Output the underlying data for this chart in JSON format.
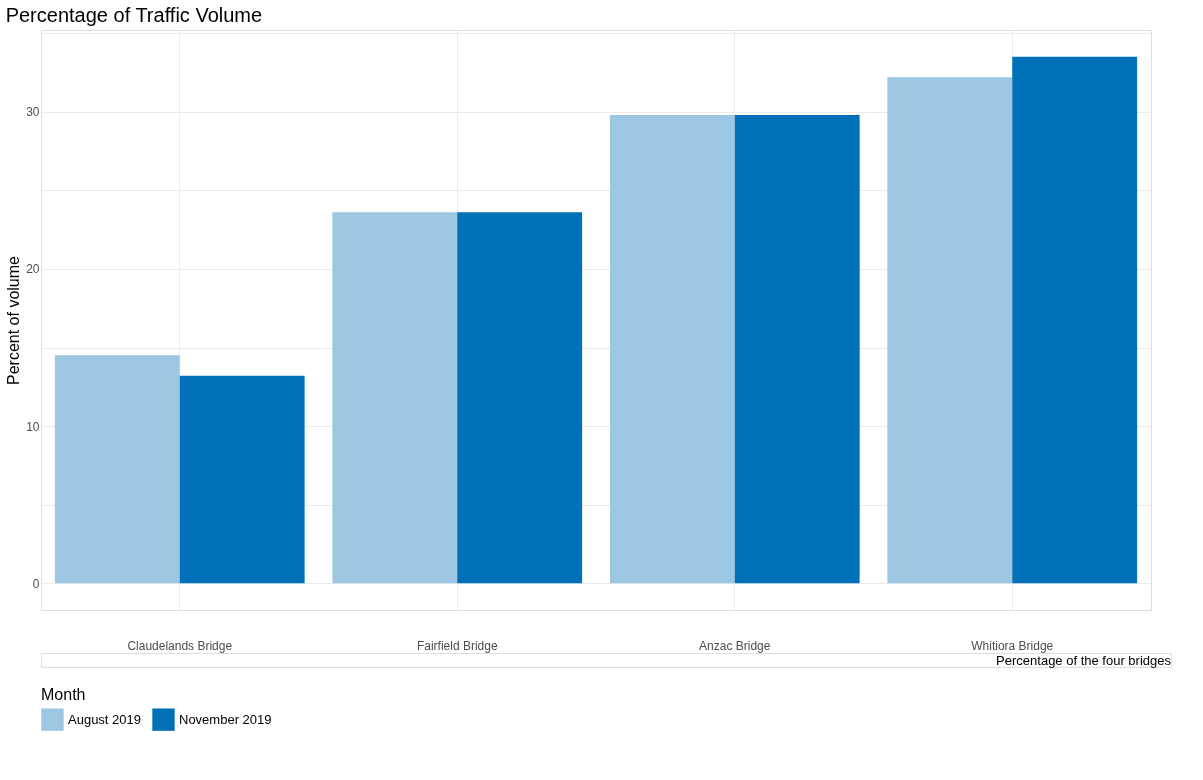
{
  "chart_data": {
    "type": "bar",
    "title": "Percentage of Traffic Volume",
    "ylabel": "Percent of volume",
    "legend_title": "Month",
    "categories": [
      "Claudelands Bridge",
      "Fairfield Bridge",
      "Anzac Bridge",
      "Whitiora Bridge"
    ],
    "series": [
      {
        "name": "August 2019",
        "color": "#9dc6e3",
        "values": [
          14.5,
          23.6,
          29.8,
          32.2
        ]
      },
      {
        "name": "November 2019",
        "color": "#0070b8",
        "values": [
          13.2,
          23.6,
          29.8,
          33.5
        ]
      }
    ],
    "ylim": [
      -1.7,
      35.2
    ],
    "yticks": [
      0,
      {
        "value": 5,
        "label": null
      },
      10,
      {
        "value": 15,
        "label": null
      },
      20,
      {
        "value": 25,
        "label": null
      },
      30,
      {
        "value": 35,
        "label": null
      }
    ],
    "grid": true,
    "legend": "bottom",
    "annotations": [
      "Percentage of the four bridges"
    ]
  }
}
